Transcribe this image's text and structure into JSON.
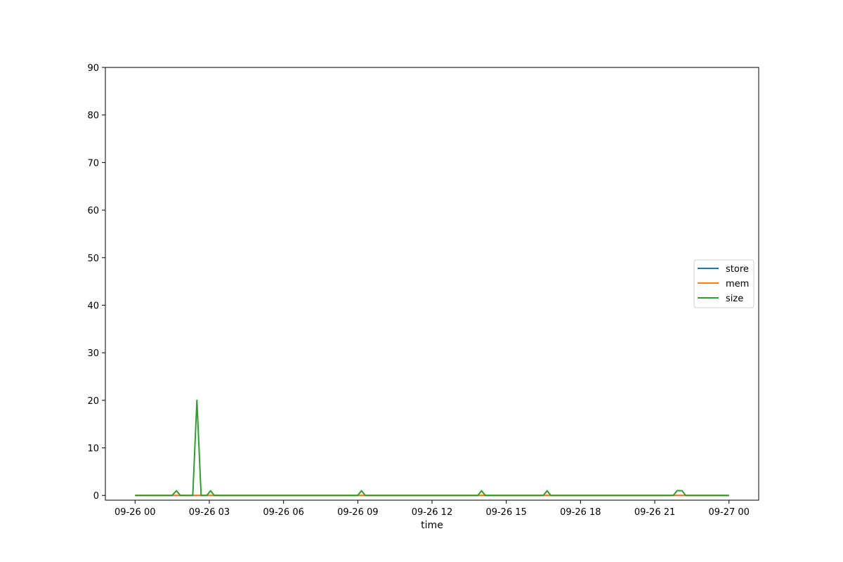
{
  "chart_data": {
    "type": "line",
    "xlabel": "time",
    "ylabel": "",
    "x_tick_labels": [
      "09-26 00",
      "09-26 03",
      "09-26 06",
      "09-26 09",
      "09-26 12",
      "09-26 15",
      "09-26 18",
      "09-26 21",
      "09-27 00"
    ],
    "x_tick_hours": [
      0,
      3,
      6,
      9,
      12,
      15,
      18,
      21,
      24
    ],
    "xlim_hours": [
      -1.2,
      25.2
    ],
    "ylim": [
      -1,
      90
    ],
    "y_ticks": [
      0,
      10,
      20,
      30,
      40,
      50,
      60,
      70,
      80,
      90
    ],
    "grid": false,
    "legend_placement": "center-right",
    "series": [
      {
        "name": "store",
        "color": "#1f77b4",
        "points": [
          [
            0,
            0
          ],
          [
            24,
            0
          ]
        ]
      },
      {
        "name": "mem",
        "color": "#ff7f0e",
        "points": [
          [
            0,
            0
          ],
          [
            24,
            0
          ]
        ]
      },
      {
        "name": "size",
        "color": "#2ca02c",
        "points": [
          [
            0,
            0
          ],
          [
            1.5,
            0
          ],
          [
            1.67,
            1
          ],
          [
            1.83,
            0
          ],
          [
            2.33,
            0
          ],
          [
            2.5,
            20
          ],
          [
            2.67,
            0
          ],
          [
            2.9,
            0
          ],
          [
            3.05,
            1
          ],
          [
            3.2,
            0
          ],
          [
            9.0,
            0
          ],
          [
            9.15,
            1
          ],
          [
            9.3,
            0
          ],
          [
            13.85,
            0
          ],
          [
            14.0,
            1
          ],
          [
            14.15,
            0
          ],
          [
            16.5,
            0
          ],
          [
            16.65,
            1
          ],
          [
            16.8,
            0
          ],
          [
            21.75,
            0
          ],
          [
            21.9,
            1
          ],
          [
            22.1,
            1
          ],
          [
            22.25,
            0
          ],
          [
            24,
            0
          ]
        ]
      }
    ]
  }
}
